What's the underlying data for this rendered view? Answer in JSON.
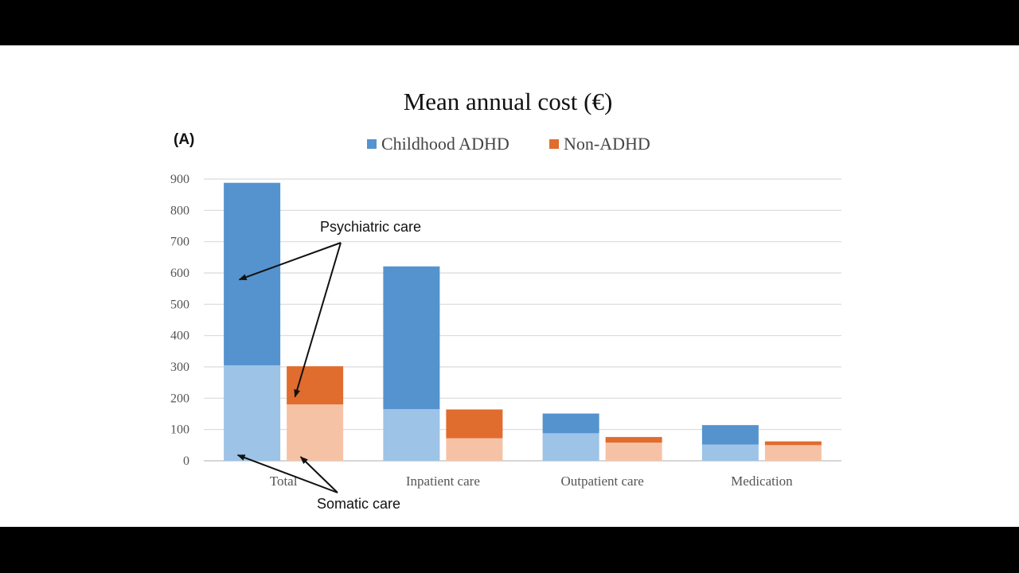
{
  "chart_data": {
    "type": "bar",
    "stacked": true,
    "title": "Mean annual cost (€)",
    "panel_label": "(A)",
    "categories": [
      "Total",
      "Inpatient care",
      "Outpatient care",
      "Medication"
    ],
    "ylim": [
      0,
      900
    ],
    "yticks": [
      0,
      100,
      200,
      300,
      400,
      500,
      600,
      700,
      800,
      900
    ],
    "grid": true,
    "legend_position": "top",
    "legend": [
      {
        "name": "Childhood ADHD",
        "color": "#5593cf"
      },
      {
        "name": "Non-ADHD",
        "color": "#e06c2e"
      }
    ],
    "groups": [
      {
        "name": "Childhood ADHD",
        "segments": [
          {
            "component": "somatic",
            "color": "#9dc3e6",
            "values": [
              305,
              165,
              88,
              52
            ]
          },
          {
            "component": "psychiatric",
            "color": "#5593cf",
            "values": [
              583,
              456,
              63,
              62
            ]
          }
        ]
      },
      {
        "name": "Non-ADHD",
        "segments": [
          {
            "component": "somatic",
            "color": "#f6c2a6",
            "values": [
              180,
              72,
              58,
              50
            ]
          },
          {
            "component": "psychiatric",
            "color": "#e06c2e",
            "values": [
              122,
              92,
              18,
              12
            ]
          }
        ]
      }
    ],
    "annotations": [
      {
        "text": "Psychiatric care"
      },
      {
        "text": "Somatic care"
      }
    ]
  }
}
